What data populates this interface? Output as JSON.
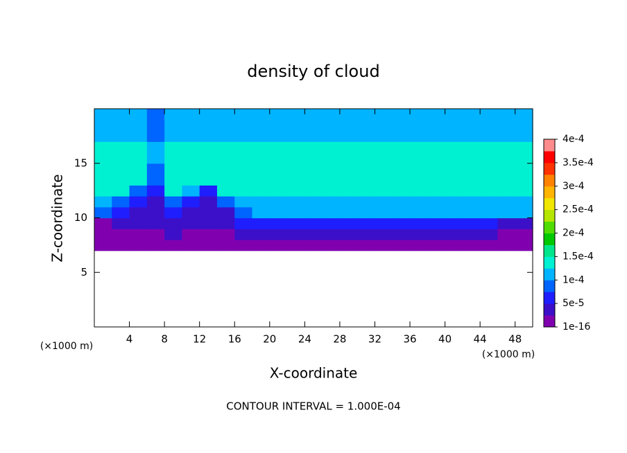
{
  "chart_data": {
    "type": "heatmap",
    "title": "density of cloud",
    "xlabel": "X-coordinate",
    "ylabel": "Z-coordinate",
    "unit_label": "(×1000 m)",
    "annotation": "CONTOUR INTERVAL = 1.000E-04",
    "xlim": [
      0,
      50
    ],
    "ylim": [
      0,
      20
    ],
    "xticks": [
      4,
      8,
      12,
      16,
      20,
      24,
      28,
      32,
      36,
      40,
      44,
      48
    ],
    "yticks": [
      5,
      10,
      15
    ],
    "xbins": [
      0,
      2,
      4,
      6,
      8,
      10,
      12,
      14,
      16,
      18,
      20,
      22,
      24,
      26,
      28,
      30,
      32,
      34,
      36,
      38,
      40,
      42,
      44,
      46,
      48,
      50
    ],
    "zbins": [
      7,
      8,
      9,
      10,
      11,
      12,
      13,
      14,
      15,
      16,
      17,
      18,
      19,
      20
    ],
    "values": [
      [
        1e-05,
        1e-05,
        1e-05,
        1e-05,
        1e-05,
        1e-05,
        1e-05,
        1e-05,
        1e-05,
        1e-05,
        1e-05,
        1e-05,
        1e-05,
        1e-05,
        1e-05,
        1e-05,
        1e-05,
        1e-05,
        1e-05,
        1e-05,
        1e-05,
        1e-05,
        1e-05,
        1e-05,
        1e-05
      ],
      [
        1.5e-05,
        1.5e-05,
        2e-05,
        2e-05,
        3e-05,
        2.5e-05,
        2.5e-05,
        2.5e-05,
        3.5e-05,
        3.5e-05,
        3.5e-05,
        3.5e-05,
        3.5e-05,
        3.5e-05,
        3.5e-05,
        3.5e-05,
        3.5e-05,
        3.5e-05,
        3.5e-05,
        3.5e-05,
        3.5e-05,
        3.5e-05,
        3.5e-05,
        1.5e-05,
        1.5e-05
      ],
      [
        2e-05,
        3e-05,
        3.5e-05,
        3.5e-05,
        5e-05,
        4e-05,
        4e-05,
        4e-05,
        6e-05,
        6e-05,
        6e-05,
        6e-05,
        6e-05,
        6e-05,
        6e-05,
        6e-05,
        6e-05,
        6e-05,
        6e-05,
        6e-05,
        6e-05,
        6e-05,
        6e-05,
        5e-05,
        3e-05
      ],
      [
        8e-05,
        6e-05,
        5e-05,
        5e-05,
        7e-05,
        4.5e-05,
        4.5e-05,
        4.5e-05,
        9e-05,
        0.000105,
        0.000105,
        0.000105,
        0.000105,
        0.000105,
        0.000105,
        0.000105,
        0.000105,
        0.000105,
        0.000105,
        0.000105,
        0.000105,
        0.000105,
        0.000105,
        0.000105,
        0.000105
      ],
      [
        0.00011,
        9e-05,
        6e-05,
        4e-05,
        9e-05,
        7e-05,
        5e-05,
        8e-05,
        0.00012,
        0.00012,
        0.00012,
        0.00012,
        0.00012,
        0.00012,
        0.00012,
        0.00012,
        0.00012,
        0.00012,
        0.00012,
        0.00012,
        0.00012,
        0.00012,
        0.00012,
        0.00012,
        0.00012
      ],
      [
        0.000135,
        0.000135,
        0.0001,
        6e-05,
        0.000135,
        0.00012,
        7e-05,
        0.000135,
        0.000135,
        0.000135,
        0.000135,
        0.000135,
        0.000135,
        0.000135,
        0.000135,
        0.000135,
        0.000135,
        0.000135,
        0.000135,
        0.000135,
        0.000135,
        0.000135,
        0.000135,
        0.000135,
        0.000135
      ],
      [
        0.000145,
        0.000145,
        0.00013,
        9e-05,
        0.000145,
        0.000145,
        0.000145,
        0.000145,
        0.000145,
        0.000145,
        0.000145,
        0.000145,
        0.000145,
        0.000145,
        0.000145,
        0.000145,
        0.000145,
        0.000145,
        0.000145,
        0.000145,
        0.000145,
        0.000145,
        0.000145,
        0.000145,
        0.000145
      ],
      [
        0.000145,
        0.000145,
        0.000145,
        0.0001,
        0.000145,
        0.000145,
        0.000145,
        0.000145,
        0.000145,
        0.000145,
        0.000145,
        0.000145,
        0.000145,
        0.000145,
        0.000145,
        0.000145,
        0.000145,
        0.000145,
        0.000145,
        0.000145,
        0.000145,
        0.000145,
        0.000145,
        0.000145,
        0.000145
      ],
      [
        0.000145,
        0.000145,
        0.000145,
        0.00011,
        0.000145,
        0.000145,
        0.000145,
        0.000145,
        0.000145,
        0.000145,
        0.000145,
        0.000145,
        0.000145,
        0.000145,
        0.000145,
        0.000145,
        0.000145,
        0.000145,
        0.000145,
        0.000145,
        0.000145,
        0.000145,
        0.000145,
        0.000145,
        0.000145
      ],
      [
        0.00014,
        0.00014,
        0.00014,
        0.000105,
        0.00014,
        0.00014,
        0.00014,
        0.00014,
        0.00014,
        0.00014,
        0.00014,
        0.00014,
        0.00014,
        0.00014,
        0.00014,
        0.00014,
        0.00014,
        0.00014,
        0.00014,
        0.00014,
        0.00014,
        0.00014,
        0.00014,
        0.00014,
        0.00014
      ],
      [
        0.00012,
        0.00012,
        0.00012,
        0.0001,
        0.00012,
        0.00012,
        0.00012,
        0.00012,
        0.00012,
        0.00012,
        0.00012,
        0.00012,
        0.00012,
        0.00012,
        0.00012,
        0.00012,
        0.00012,
        0.00012,
        0.00012,
        0.00012,
        0.00012,
        0.00012,
        0.00012,
        0.00012,
        0.00012
      ],
      [
        0.000115,
        0.000115,
        0.000115,
        9e-05,
        0.000115,
        0.000115,
        0.000115,
        0.000115,
        0.000115,
        0.000115,
        0.000115,
        0.000115,
        0.000115,
        0.000115,
        0.000115,
        0.000115,
        0.000115,
        0.000115,
        0.000115,
        0.000115,
        0.000115,
        0.000115,
        0.000115,
        0.000115,
        0.000115
      ],
      [
        0.000105,
        0.000105,
        0.000105,
        8e-05,
        0.000105,
        0.000105,
        0.000105,
        0.000105,
        0.000105,
        0.000105,
        0.000105,
        0.000105,
        0.000105,
        0.000105,
        0.000105,
        0.000105,
        0.000105,
        0.000105,
        0.000105,
        0.000105,
        0.000105,
        0.000105,
        0.000105,
        0.000105,
        0.000105
      ]
    ],
    "colorbar": {
      "lim": [
        1e-16,
        0.0004
      ],
      "ticks": [
        {
          "value": 1e-16,
          "label": "1e-16"
        },
        {
          "value": 5e-05,
          "label": "5e-5"
        },
        {
          "value": 0.0001,
          "label": "1e-4"
        },
        {
          "value": 0.00015,
          "label": "1.5e-4"
        },
        {
          "value": 0.0002,
          "label": "2e-4"
        },
        {
          "value": 0.00025,
          "label": "2.5e-4"
        },
        {
          "value": 0.0003,
          "label": "3e-4"
        },
        {
          "value": 0.00035,
          "label": "3.5e-4"
        },
        {
          "value": 0.0004,
          "label": "4e-4"
        }
      ],
      "colors": [
        "#8000b0",
        "#3c10c8",
        "#1e1eff",
        "#0064ff",
        "#00b4ff",
        "#00f0d2",
        "#00e68c",
        "#00c800",
        "#50dc00",
        "#b4e600",
        "#f0e600",
        "#ffb400",
        "#ff8200",
        "#ff3200",
        "#ff0000",
        "#ff8c8c"
      ]
    }
  }
}
